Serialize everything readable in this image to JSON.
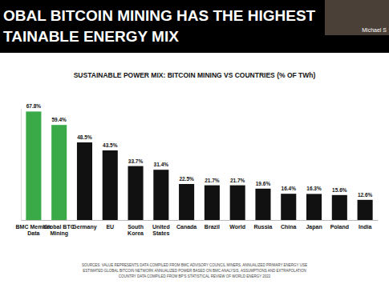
{
  "slide": {
    "title_lines": [
      "OBAL BITCOIN MINING HAS THE HIGHEST",
      "TAINABLE ENERGY MIX"
    ],
    "presenter": "Michael S",
    "sources": [
      "SOURCES: VALUE REPRESENTS DATA COMPILED FROM BMC ADVISORY COUNCIL MINERS, ANNUALIZED PRIMARY ENERGY USE",
      "ESTIMATED GLOBAL BITCOIN NETWORK ANNUALIZED POWER BASED ON BMC ANALYSIS, ASSUMPTIONS AND EXTRAPOLATION",
      "COUNTRY DATA COMPILED FROM BP'S STATISTICAL REVIEW OF WORLD ENERGY 2022"
    ]
  },
  "chart_data": {
    "type": "bar",
    "title": "SUSTAINABLE POWER MIX: BITCOIN MINING VS COUNTRIES (% OF TWh)",
    "categories": [
      "BMC Member Data",
      "Global BTC Mining",
      "Germany",
      "EU",
      "South Korea",
      "United States",
      "Canada",
      "Brazil",
      "World",
      "Russia",
      "China",
      "Japan",
      "Poland",
      "India"
    ],
    "values": [
      67.8,
      59.4,
      48.5,
      43.5,
      33.7,
      31.4,
      22.5,
      21.7,
      21.7,
      19.6,
      16.4,
      16.3,
      15.6,
      12.6
    ],
    "value_labels": [
      "67.8%",
      "59.4%",
      "48.5%",
      "43.5%",
      "33.7%",
      "31.4%",
      "22.5%",
      "21.7%",
      "21.7%",
      "19.6%",
      "16.4%",
      "16.3%",
      "15.6%",
      "12.6%"
    ],
    "colors": [
      "#3aaa48",
      "#3aaa48",
      "#111111",
      "#111111",
      "#111111",
      "#111111",
      "#111111",
      "#111111",
      "#111111",
      "#111111",
      "#111111",
      "#111111",
      "#111111",
      "#111111"
    ],
    "ylim": [
      0,
      70
    ],
    "data_labels": true,
    "tick_labels": "x",
    "grid": false
  }
}
